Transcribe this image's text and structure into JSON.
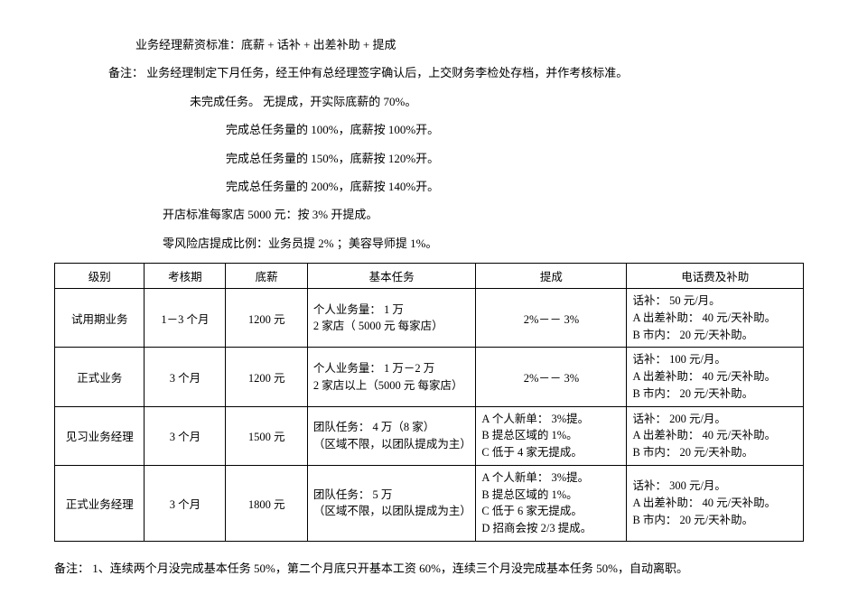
{
  "lines": {
    "l1": "业务经理薪资标准：底薪   + 话补 + 出差补助 + 提成",
    "l2": "备注：  业务经理制定下月任务，经王仲有总经理签字确认后，上交财务李检处存档，并作考核标准。",
    "l3": "未完成任务。      无提成，开实际底薪的   70%。",
    "l4": "完成总任务量的   100%，底薪按 100%开。",
    "l5": "完成总任务量的   150%，底薪按 120%开。",
    "l6": "完成总任务量的   200%，底薪按 140%开。",
    "l7": "开店标准每家店   5000 元：按   3% 开提成。",
    "l8": "零风险店提成比例：业务员提    2%  ；美容导师提   1%。"
  },
  "table": {
    "headers": [
      "级别",
      "考核期",
      "底薪",
      "基本任务",
      "提成",
      "电话费及补助"
    ],
    "colwidths": [
      "90px",
      "80px",
      "80px",
      "180px",
      "160px",
      "190px"
    ],
    "rows": [
      {
        "level": "试用期业务",
        "period": "1－3 个月",
        "base": "1200 元",
        "task": "个人业务量： 1 万\n2 家店（ 5000 元 每家店）",
        "commission": "2%－－ 3%",
        "phone": "话补： 50 元/月。\nA 出差补助： 40 元/天补助。\nB 市内： 20 元/天补助。"
      },
      {
        "level": "正式业务",
        "period": "3 个月",
        "base": "1200 元",
        "task": "个人业务量： 1 万－2 万\n2 家店以上（5000 元 每家店）",
        "commission": "2%－－ 3%",
        "phone": "话补： 100 元/月。\nA 出差补助： 40 元/天补助。\nB 市内： 20 元/天补助。"
      },
      {
        "level": "见习业务经理",
        "period": "3 个月",
        "base": "1500 元",
        "task": "团队任务： 4 万（8 家）\n（区域不限，以团队提成为主）",
        "commission": "A 个人新单： 3%提。\nB 提总区域的  1%。\nC 低于 4 家无提成。",
        "phone": "话补： 200 元/月。\nA 出差补助： 40 元/天补助。\nB 市内： 20 元/天补助。"
      },
      {
        "level": "正式业务经理",
        "period": "3 个月",
        "base": "1800 元",
        "task": "团队任务： 5 万\n（区域不限，以团队提成为主）",
        "commission": "A 个人新单： 3%提。\nB 提总区域的  1%。\nC 低于 6 家无提成。\nD 招商会按  2/3 提成。",
        "phone": "话补： 300 元/月。\nA 出差补助： 40 元/天补助。\nB 市内： 20 元/天补助。"
      }
    ]
  },
  "footer": "备注：      1、连续两个月没完成基本任务   50%，第二个月底只开基本工资   60%，连续三个月没完成基本任务    50%，自动离职。"
}
